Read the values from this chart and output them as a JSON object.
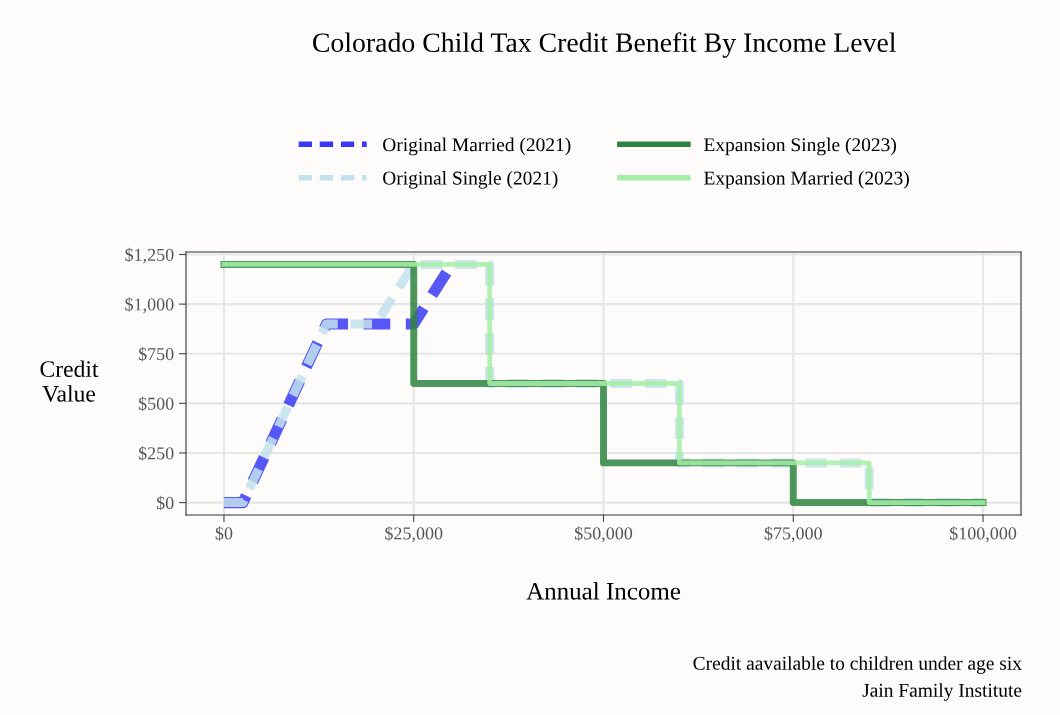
{
  "chart_data": {
    "type": "line",
    "title": "Colorado Child Tax Credit Benefit By Income Level",
    "xlabel": "Annual Income",
    "ylabel": "Credit\nValue",
    "annotations": [
      "Credit aavailable to children under age six",
      "Jain Family Institute"
    ],
    "series": [
      {
        "name": "Original Married (2021)",
        "color": "#3a3af5",
        "line_style": "dashed",
        "x": [
          0,
          2500,
          13500,
          25000,
          30000
        ],
        "values": [
          0,
          0,
          900,
          900,
          1200
        ]
      },
      {
        "name": "Original Single (2021)",
        "color": "#c3e2ec",
        "line_style": "dashed",
        "x": [
          0,
          2500,
          13500,
          20000,
          25000,
          35000,
          35000,
          60000,
          60000,
          85000,
          85000,
          100000
        ],
        "values": [
          0,
          0,
          900,
          900,
          1200,
          1200,
          600,
          600,
          200,
          200,
          0,
          0
        ]
      },
      {
        "name": "Expansion Single (2023)",
        "color": "#2e8540",
        "line_style": "solid",
        "x": [
          0,
          25000,
          25000,
          50000,
          50000,
          75000,
          75000,
          100000
        ],
        "values": [
          1200,
          1200,
          600,
          600,
          200,
          200,
          0,
          0
        ]
      },
      {
        "name": "Expansion Married (2023)",
        "color": "#a6eea6",
        "line_style": "solid",
        "x": [
          0,
          35000,
          35000,
          60000,
          60000,
          85000,
          85000,
          100000
        ],
        "values": [
          1200,
          1200,
          600,
          600,
          200,
          200,
          0,
          0
        ]
      }
    ],
    "xlim": [
      -5000,
      105000
    ],
    "xticks": [
      {
        "value": 0,
        "label": "$0"
      },
      {
        "value": 25000,
        "label": "$25,000"
      },
      {
        "value": 50000,
        "label": "$50,000"
      },
      {
        "value": 75000,
        "label": "$75,000"
      },
      {
        "value": 100000,
        "label": "$100,000"
      }
    ],
    "ylim": [
      -62.5,
      1262.5
    ],
    "yticks": [
      {
        "value": 0,
        "label": "$0"
      },
      {
        "value": 250,
        "label": "$250"
      },
      {
        "value": 500,
        "label": "$500"
      },
      {
        "value": 750,
        "label": "$750"
      },
      {
        "value": 1000,
        "label": "$1,000"
      },
      {
        "value": 1250,
        "label": "$1,250"
      }
    ],
    "grid": true,
    "legend": "top",
    "marker": "none"
  }
}
